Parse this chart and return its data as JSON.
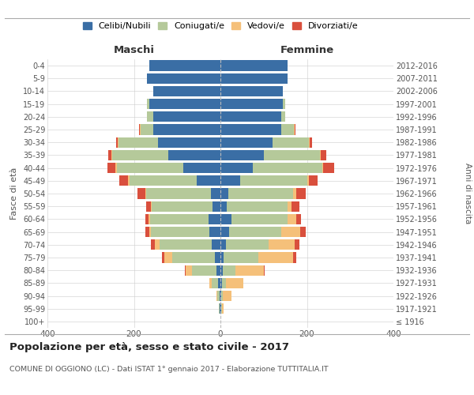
{
  "age_groups": [
    "100+",
    "95-99",
    "90-94",
    "85-89",
    "80-84",
    "75-79",
    "70-74",
    "65-69",
    "60-64",
    "55-59",
    "50-54",
    "45-49",
    "40-44",
    "35-39",
    "30-34",
    "25-29",
    "20-24",
    "15-19",
    "10-14",
    "5-9",
    "0-4"
  ],
  "birth_years": [
    "≤ 1916",
    "1917-1921",
    "1922-1926",
    "1927-1931",
    "1932-1936",
    "1937-1941",
    "1942-1946",
    "1947-1951",
    "1952-1956",
    "1957-1961",
    "1962-1966",
    "1967-1971",
    "1972-1976",
    "1977-1981",
    "1982-1986",
    "1987-1991",
    "1992-1996",
    "1997-2001",
    "2002-2006",
    "2007-2011",
    "2012-2016"
  ],
  "male": {
    "celibi": [
      0,
      1,
      2,
      5,
      10,
      12,
      20,
      25,
      28,
      18,
      22,
      55,
      85,
      120,
      145,
      155,
      155,
      165,
      155,
      170,
      165
    ],
    "coniugati": [
      0,
      2,
      6,
      15,
      55,
      100,
      120,
      135,
      135,
      140,
      150,
      155,
      155,
      130,
      90,
      30,
      15,
      5,
      0,
      0,
      0
    ],
    "vedovi": [
      0,
      0,
      2,
      5,
      15,
      18,
      12,
      5,
      3,
      2,
      2,
      3,
      3,
      2,
      2,
      2,
      0,
      0,
      0,
      0,
      0
    ],
    "divorziati": [
      0,
      0,
      0,
      0,
      2,
      5,
      8,
      8,
      8,
      12,
      18,
      20,
      18,
      8,
      5,
      2,
      0,
      0,
      0,
      0,
      0
    ]
  },
  "female": {
    "nubili": [
      0,
      1,
      2,
      3,
      5,
      8,
      12,
      20,
      25,
      15,
      18,
      45,
      75,
      100,
      120,
      140,
      140,
      145,
      145,
      155,
      155
    ],
    "coniugate": [
      0,
      2,
      4,
      10,
      30,
      80,
      100,
      120,
      130,
      140,
      150,
      155,
      160,
      130,
      85,
      30,
      10,
      5,
      0,
      0,
      0
    ],
    "vedove": [
      0,
      5,
      20,
      40,
      65,
      80,
      60,
      45,
      20,
      10,
      8,
      5,
      3,
      2,
      2,
      2,
      0,
      0,
      0,
      0,
      0
    ],
    "divorziate": [
      0,
      0,
      0,
      0,
      2,
      8,
      10,
      12,
      12,
      18,
      22,
      20,
      25,
      12,
      5,
      2,
      0,
      0,
      0,
      0,
      0
    ]
  },
  "colors": {
    "celibi": "#3a6ea5",
    "coniugati": "#b5c99a",
    "vedovi": "#f5c07a",
    "divorziati": "#d94f3d"
  },
  "legend_labels": [
    "Celibi/Nubili",
    "Coniugati/e",
    "Vedovi/e",
    "Divorziati/e"
  ],
  "title": "Popolazione per età, sesso e stato civile - 2017",
  "subtitle": "COMUNE DI OGGIONO (LC) - Dati ISTAT 1° gennaio 2017 - Elaborazione TUTTITALIA.IT",
  "xlabel_left": "Maschi",
  "xlabel_right": "Femmine",
  "ylabel_left": "Fasce di età",
  "ylabel_right": "Anni di nascita",
  "xlim": 400,
  "background_color": "#ffffff",
  "grid_color": "#cccccc",
  "dashed_line_color": "#aaaaaa"
}
